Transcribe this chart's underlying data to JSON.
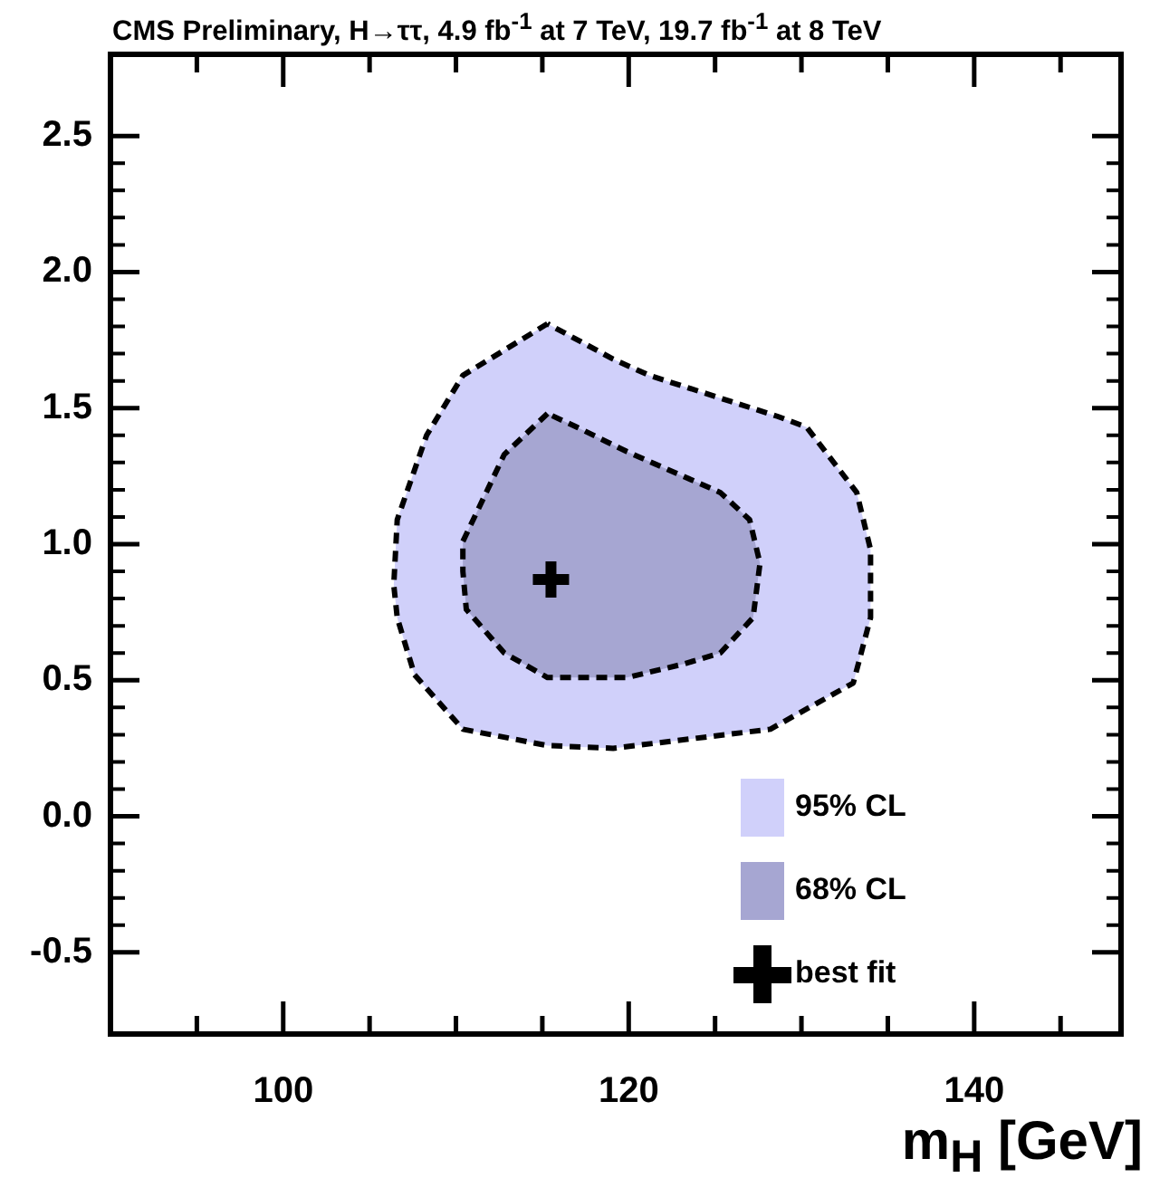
{
  "chart_data": {
    "type": "area",
    "title": "CMS Preliminary, H→ττ, 4.9 fb$^{-1}$ at 7 TeV, 19.7 fb$^{-1}$ at 8 TeV",
    "xlabel": "m$_{H}$ [GeV]",
    "xlim": [
      90,
      148.5
    ],
    "ylim": [
      -0.8,
      2.8
    ],
    "xticks": [
      {
        "value": 95,
        "label": null
      },
      100,
      {
        "value": 105,
        "label": null
      },
      {
        "value": 110,
        "label": null
      },
      {
        "value": 115,
        "label": null
      },
      120,
      {
        "value": 125,
        "label": null
      },
      {
        "value": 130,
        "label": null
      },
      {
        "value": 135,
        "label": null
      },
      140,
      {
        "value": 145,
        "label": null
      }
    ],
    "yticks": [
      {
        "value": -0.5,
        "label": "-0.5"
      },
      {
        "value": 0,
        "label": "0.0"
      },
      0.5,
      {
        "value": 1,
        "label": "1.0"
      },
      1.5,
      {
        "value": 2,
        "label": "2.0"
      },
      2.5
    ],
    "legend": "bottom right",
    "line_style": "dashed",
    "series": [
      {
        "name": "95% CL",
        "color": "#d0d0fa",
        "x": [
          115.3,
          110.4,
          108.3,
          106.6,
          106.4,
          106.6,
          107.6,
          110.4,
          115.3,
          119.1,
          128.2,
          133.0,
          134.0,
          134.0,
          133.2,
          130.3,
          128.6,
          121.2,
          119.1,
          115.3
        ],
        "values": [
          1.81,
          1.62,
          1.4,
          1.09,
          0.85,
          0.73,
          0.52,
          0.32,
          0.26,
          0.25,
          0.32,
          0.49,
          0.73,
          0.98,
          1.19,
          1.43,
          1.47,
          1.62,
          1.68,
          1.81
        ]
      },
      {
        "name": "68% CL",
        "color": "#a6a6d2",
        "x": [
          115.3,
          112.8,
          110.4,
          110.4,
          110.6,
          112.8,
          115.3,
          119.9,
          123.2,
          125.3,
          127.2,
          127.6,
          127.0,
          125.3,
          119.9,
          117.0,
          115.3
        ],
        "values": [
          1.48,
          1.33,
          1.01,
          0.9,
          0.76,
          0.6,
          0.51,
          0.51,
          0.56,
          0.6,
          0.73,
          0.93,
          1.09,
          1.19,
          1.34,
          1.43,
          1.48
        ]
      },
      {
        "name": "best fit",
        "type": "scatter",
        "marker": "cross",
        "color": "#000000",
        "x": [
          115.5
        ],
        "values": [
          0.87
        ]
      }
    ]
  }
}
